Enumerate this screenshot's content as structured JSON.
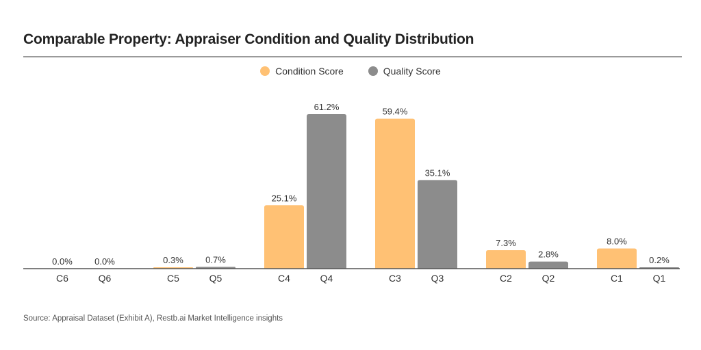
{
  "title": "Comparable Property: Appraiser Condition and Quality Distribution",
  "source": "Source: Appraisal Dataset (Exhibit A), Restb.ai Market Intelligence insights",
  "colors": {
    "condition": "#FFC174",
    "quality": "#8C8C8C",
    "axis": "#555555",
    "title_rule": "#9A9A9A"
  },
  "chart_data": {
    "type": "bar",
    "title": "Comparable Property: Appraiser Condition and Quality Distribution",
    "xlabel": "",
    "ylabel": "",
    "legend": {
      "position": "top-center",
      "entries": [
        "Condition Score",
        "Quality Score"
      ]
    },
    "grid": false,
    "ylim": [
      0,
      65
    ],
    "series": [
      {
        "name": "Condition Score",
        "categories": [
          "C6",
          "C5",
          "C4",
          "C3",
          "C2",
          "C1"
        ],
        "values": [
          0.0,
          0.3,
          25.1,
          59.4,
          7.3,
          8.0
        ],
        "labels": [
          "0.0%",
          "0.3%",
          "25.1%",
          "59.4%",
          "7.3%",
          "8.0%"
        ]
      },
      {
        "name": "Quality Score",
        "categories": [
          "Q6",
          "Q5",
          "Q4",
          "Q3",
          "Q2",
          "Q1"
        ],
        "values": [
          0.0,
          0.7,
          61.2,
          35.1,
          2.8,
          0.2
        ],
        "labels": [
          "0.0%",
          "0.7%",
          "61.2%",
          "35.1%",
          "2.8%",
          "0.2%"
        ]
      }
    ]
  }
}
